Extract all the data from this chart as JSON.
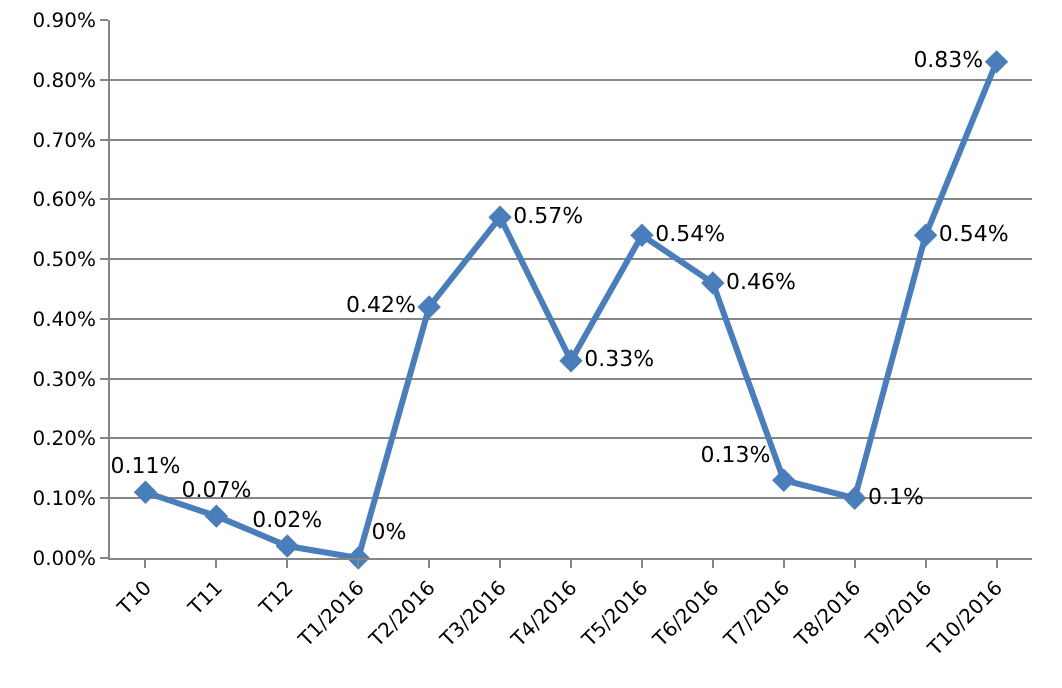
{
  "chart_data": {
    "type": "line",
    "categories": [
      "T10",
      "T11",
      "T12",
      "T1/2016",
      "T2/2016",
      "T3/2016",
      "T4/2016",
      "T5/2016",
      "T6/2016",
      "T7/2016",
      "T8/2016",
      "T9/2016",
      "T10/2016"
    ],
    "series": [
      {
        "color": "#4a7ebb",
        "values": [
          0.11,
          0.07,
          0.02,
          0,
          0.42,
          0.57,
          0.33,
          0.54,
          0.46,
          0.13,
          0.1,
          0.54,
          0.83
        ],
        "value_labels": [
          "0.11%",
          "0.07%",
          "0.02%",
          "0%",
          "0.42%",
          "0.57%",
          "0.33%",
          "0.54%",
          "0.46%",
          "0.13%",
          "0.1%",
          "0.54%",
          "0.83%"
        ]
      }
    ],
    "ylim": [
      0,
      0.9
    ],
    "yticks": [
      {
        "value": 0,
        "label": "0.00%"
      },
      {
        "value": 0.1,
        "label": "0.10%"
      },
      {
        "value": 0.2,
        "label": "0.20%"
      },
      {
        "value": 0.3,
        "label": "0.30%"
      },
      {
        "value": 0.4,
        "label": "0.40%"
      },
      {
        "value": 0.5,
        "label": "0.50%"
      },
      {
        "value": 0.6,
        "label": "0.60%"
      },
      {
        "value": 0.7,
        "label": "0.70%"
      },
      {
        "value": 0.8,
        "label": "0.80%"
      },
      {
        "value": 0.9,
        "label": "0.90%"
      }
    ],
    "grid": "y",
    "marker": "diamond",
    "line_style": "solid"
  }
}
